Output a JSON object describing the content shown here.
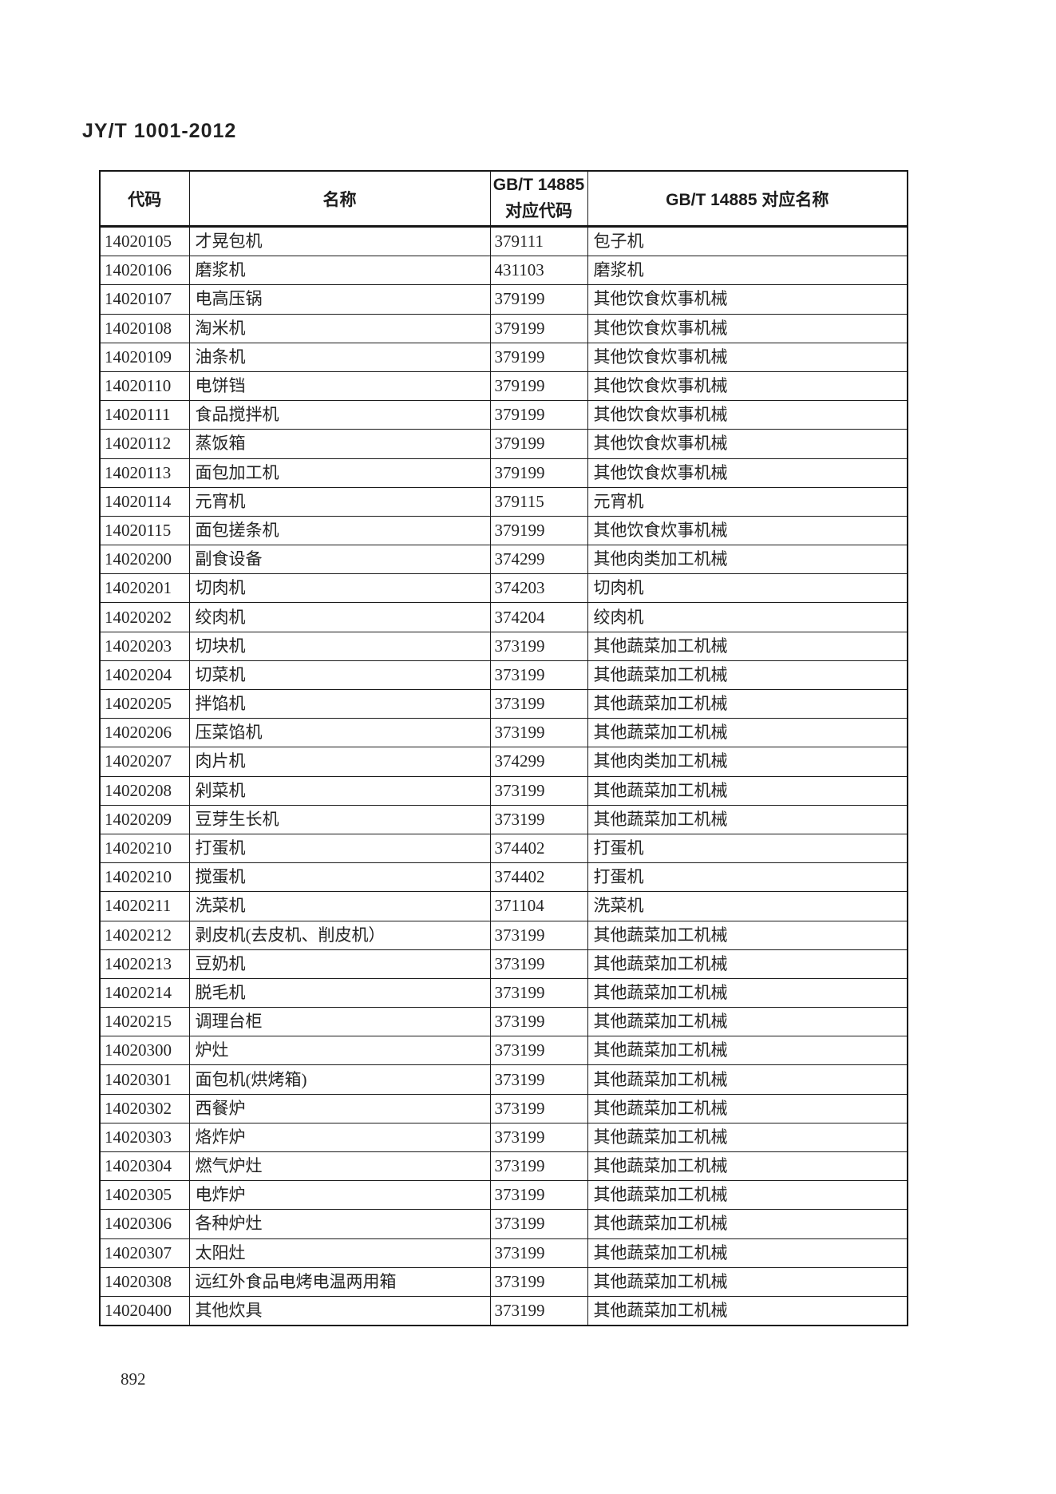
{
  "page": {
    "standard_number": "JY/T 1001-2012",
    "page_number": "892"
  },
  "colors": {
    "text": "#242424",
    "border": "#1b1b1b",
    "background": "#ffffff"
  },
  "table": {
    "headers": {
      "code": "代码",
      "name": "名称",
      "gbt_code": "GB/T 14885\n对应代码",
      "gbt_name": "GB/T 14885 对应名称"
    },
    "rows": [
      {
        "code": "14020105",
        "name": "才晃包机",
        "gbt_code": "379111",
        "gbt_name": "包子机"
      },
      {
        "code": "14020106",
        "name": "磨浆机",
        "gbt_code": "431103",
        "gbt_name": "磨浆机"
      },
      {
        "code": "14020107",
        "name": "电高压锅",
        "gbt_code": "379199",
        "gbt_name": "其他饮食炊事机械"
      },
      {
        "code": "14020108",
        "name": "淘米机",
        "gbt_code": "379199",
        "gbt_name": "其他饮食炊事机械"
      },
      {
        "code": "14020109",
        "name": "油条机",
        "gbt_code": "379199",
        "gbt_name": "其他饮食炊事机械"
      },
      {
        "code": "14020110",
        "name": "电饼铛",
        "gbt_code": "379199",
        "gbt_name": "其他饮食炊事机械"
      },
      {
        "code": "14020111",
        "name": "食品搅拌机",
        "gbt_code": "379199",
        "gbt_name": "其他饮食炊事机械"
      },
      {
        "code": "14020112",
        "name": "蒸饭箱",
        "gbt_code": "379199",
        "gbt_name": "其他饮食炊事机械"
      },
      {
        "code": "14020113",
        "name": "面包加工机",
        "gbt_code": "379199",
        "gbt_name": "其他饮食炊事机械"
      },
      {
        "code": "14020114",
        "name": "元宵机",
        "gbt_code": "379115",
        "gbt_name": "元宵机"
      },
      {
        "code": "14020115",
        "name": "面包搓条机",
        "gbt_code": "379199",
        "gbt_name": "其他饮食炊事机械"
      },
      {
        "code": "14020200",
        "name": "副食设备",
        "gbt_code": "374299",
        "gbt_name": "其他肉类加工机械"
      },
      {
        "code": "14020201",
        "name": "切肉机",
        "gbt_code": "374203",
        "gbt_name": "切肉机"
      },
      {
        "code": "14020202",
        "name": "绞肉机",
        "gbt_code": "374204",
        "gbt_name": "绞肉机"
      },
      {
        "code": "14020203",
        "name": "切块机",
        "gbt_code": "373199",
        "gbt_name": "其他蔬菜加工机械"
      },
      {
        "code": "14020204",
        "name": "切菜机",
        "gbt_code": "373199",
        "gbt_name": "其他蔬菜加工机械"
      },
      {
        "code": "14020205",
        "name": "拌馅机",
        "gbt_code": "373199",
        "gbt_name": "其他蔬菜加工机械"
      },
      {
        "code": "14020206",
        "name": "压菜馅机",
        "gbt_code": "373199",
        "gbt_name": "其他蔬菜加工机械"
      },
      {
        "code": "14020207",
        "name": "肉片机",
        "gbt_code": "374299",
        "gbt_name": "其他肉类加工机械"
      },
      {
        "code": "14020208",
        "name": "剁菜机",
        "gbt_code": "373199",
        "gbt_name": "其他蔬菜加工机械"
      },
      {
        "code": "14020209",
        "name": "豆芽生长机",
        "gbt_code": "373199",
        "gbt_name": "其他蔬菜加工机械"
      },
      {
        "code": "14020210",
        "name": "打蛋机",
        "gbt_code": "374402",
        "gbt_name": "打蛋机"
      },
      {
        "code": "14020210",
        "name": "搅蛋机",
        "gbt_code": "374402",
        "gbt_name": "打蛋机"
      },
      {
        "code": "14020211",
        "name": "洗菜机",
        "gbt_code": "371104",
        "gbt_name": "洗菜机"
      },
      {
        "code": "14020212",
        "name": "剥皮机(去皮机、削皮机）",
        "gbt_code": "373199",
        "gbt_name": "其他蔬菜加工机械"
      },
      {
        "code": "14020213",
        "name": "豆奶机",
        "gbt_code": "373199",
        "gbt_name": "其他蔬菜加工机械"
      },
      {
        "code": "14020214",
        "name": "脱毛机",
        "gbt_code": "373199",
        "gbt_name": "其他蔬菜加工机械"
      },
      {
        "code": "14020215",
        "name": "调理台柜",
        "gbt_code": "373199",
        "gbt_name": "其他蔬菜加工机械"
      },
      {
        "code": "14020300",
        "name": "炉灶",
        "gbt_code": "373199",
        "gbt_name": "其他蔬菜加工机械"
      },
      {
        "code": "14020301",
        "name": "面包机(烘烤箱)",
        "gbt_code": "373199",
        "gbt_name": "其他蔬菜加工机械"
      },
      {
        "code": "14020302",
        "name": "西餐炉",
        "gbt_code": "373199",
        "gbt_name": "其他蔬菜加工机械"
      },
      {
        "code": "14020303",
        "name": "烙炸炉",
        "gbt_code": "373199",
        "gbt_name": "其他蔬菜加工机械"
      },
      {
        "code": "14020304",
        "name": "燃气炉灶",
        "gbt_code": "373199",
        "gbt_name": "其他蔬菜加工机械"
      },
      {
        "code": "14020305",
        "name": "电炸炉",
        "gbt_code": "373199",
        "gbt_name": "其他蔬菜加工机械"
      },
      {
        "code": "14020306",
        "name": "各种炉灶",
        "gbt_code": "373199",
        "gbt_name": "其他蔬菜加工机械"
      },
      {
        "code": "14020307",
        "name": "太阳灶",
        "gbt_code": "373199",
        "gbt_name": "其他蔬菜加工机械"
      },
      {
        "code": "14020308",
        "name": "远红外食品电烤电温两用箱",
        "gbt_code": "373199",
        "gbt_name": "其他蔬菜加工机械"
      },
      {
        "code": "14020400",
        "name": "其他炊具",
        "gbt_code": "373199",
        "gbt_name": "其他蔬菜加工机械"
      }
    ]
  }
}
